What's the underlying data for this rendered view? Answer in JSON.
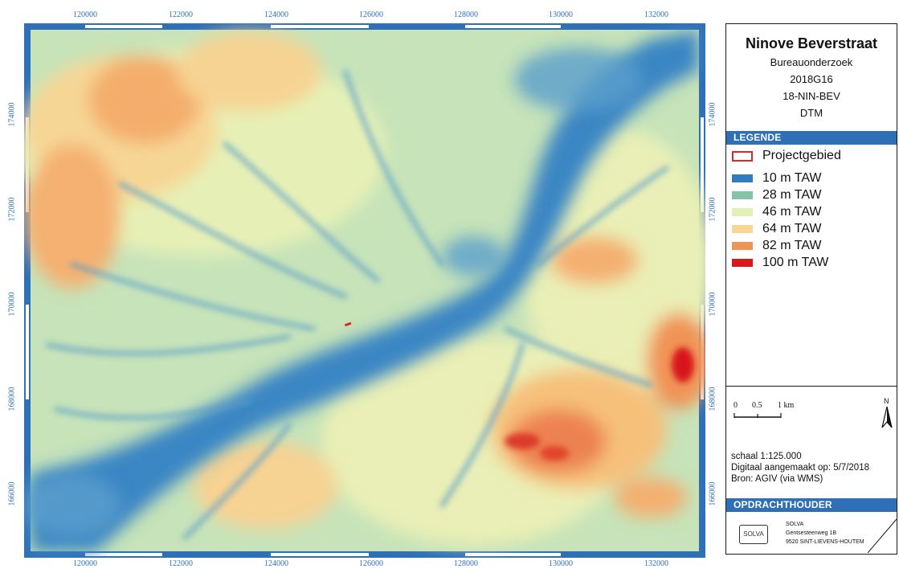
{
  "map": {
    "ticks_x": [
      "120000",
      "122000",
      "124000",
      "126000",
      "128000",
      "130000",
      "132000"
    ],
    "ticks_y": [
      "174000",
      "172000",
      "170000",
      "168000",
      "166000"
    ]
  },
  "title_block": {
    "title": "Ninove Beverstraat",
    "lines": [
      "Bureauonderzoek",
      "2018G16",
      "18-NIN-BEV",
      "DTM"
    ]
  },
  "legend": {
    "header": "LEGENDE",
    "items": [
      {
        "label": "Projectgebied",
        "color": "#d42a2a",
        "style": "outline"
      },
      {
        "label": "10 m TAW",
        "color": "#2f7cc0",
        "style": "fill"
      },
      {
        "label": "28 m TAW",
        "color": "#84c3a8",
        "style": "fill"
      },
      {
        "label": "46 m TAW",
        "color": "#e2efb5",
        "style": "fill"
      },
      {
        "label": "64 m TAW",
        "color": "#f8d591",
        "style": "fill"
      },
      {
        "label": "82 m TAW",
        "color": "#f19354",
        "style": "fill"
      },
      {
        "label": "100 m TAW",
        "color": "#d7191c",
        "style": "fill"
      }
    ]
  },
  "scalebar": {
    "labels": [
      "0",
      "0.5",
      "1 km"
    ]
  },
  "north_arrow": {
    "label": "N"
  },
  "info": {
    "scale": "schaal   1:125.000",
    "date": "Digitaal aangemaakt op: 5/7/2018",
    "source": "Bron: AGIV (via WMS)"
  },
  "contractor": {
    "header": "OPDRACHTHOUDER",
    "logo": "SOLVA",
    "name": "SOLVA",
    "street": "Gentsesteenweg 1B",
    "city": "9520 SINT-LIEVENS-HOUTEM"
  },
  "colors": {
    "frame": "#2f6fb6"
  }
}
